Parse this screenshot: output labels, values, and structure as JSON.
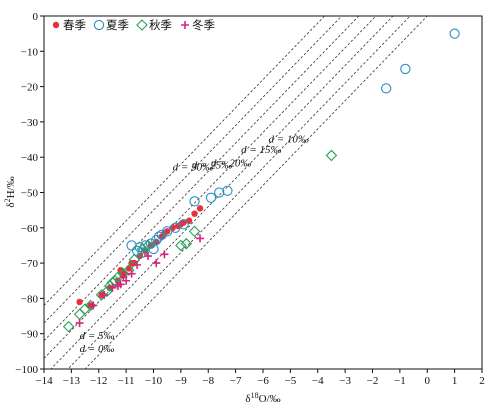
{
  "chart_data": {
    "type": "scatter",
    "xlabel": "δ18O/‰",
    "ylabel": "δ2H/‰",
    "xlim": [
      -14,
      2
    ],
    "ylim": [
      -100,
      0
    ],
    "x_ticks": [
      -14,
      -13,
      -12,
      -11,
      -10,
      -9,
      -8,
      -7,
      -6,
      -5,
      -4,
      -3,
      -2,
      -1,
      0,
      1,
      2
    ],
    "y_ticks": [
      0,
      -10,
      -20,
      -30,
      -40,
      -50,
      -60,
      -70,
      -80,
      -90,
      -100
    ],
    "grid": false,
    "legend_position": "top-left",
    "reference_lines": [
      {
        "d": 0,
        "label": "d = 0‰"
      },
      {
        "d": 5,
        "label": "d = 5‰"
      },
      {
        "d": 10,
        "label": "d = 10‰"
      },
      {
        "d": 15,
        "label": "d = 15‰"
      },
      {
        "d": 20,
        "label": "d = 20‰"
      },
      {
        "d": 25,
        "label": "d = 25‰"
      },
      {
        "d": 30,
        "label": "d = 30‰"
      }
    ],
    "series": [
      {
        "name": "春季",
        "marker": "filled-circle",
        "color": "#e8303a",
        "points": [
          [
            -12.7,
            -81
          ],
          [
            -12.3,
            -82
          ],
          [
            -11.9,
            -79
          ],
          [
            -11.6,
            -77
          ],
          [
            -11.3,
            -75
          ],
          [
            -11.1,
            -73
          ],
          [
            -10.9,
            -71.5
          ],
          [
            -10.7,
            -70
          ],
          [
            -10.5,
            -68
          ],
          [
            -10.3,
            -66.5
          ],
          [
            -10.1,
            -65
          ],
          [
            -9.9,
            -64
          ],
          [
            -9.7,
            -62.5
          ],
          [
            -9.5,
            -61
          ],
          [
            -9.3,
            -60
          ],
          [
            -9.1,
            -59.5
          ],
          [
            -8.9,
            -58.5
          ],
          [
            -8.7,
            -58
          ],
          [
            -8.5,
            -56
          ],
          [
            -8.3,
            -54.5
          ],
          [
            -10.8,
            -70
          ],
          [
            -11.2,
            -72
          ],
          [
            -9.6,
            -61.5
          ],
          [
            -9.0,
            -59
          ]
        ]
      },
      {
        "name": "夏季",
        "marker": "open-circle",
        "color": "#2a8fc0",
        "points": [
          [
            1.0,
            -5
          ],
          [
            -0.8,
            -15
          ],
          [
            -1.5,
            -20.5
          ],
          [
            -7.3,
            -49.5
          ],
          [
            -7.6,
            -50
          ],
          [
            -7.9,
            -51.5
          ],
          [
            -8.5,
            -52.5
          ],
          [
            -8.9,
            -59
          ],
          [
            -9.2,
            -60
          ],
          [
            -9.5,
            -61
          ],
          [
            -9.7,
            -62
          ],
          [
            -9.9,
            -63.5
          ],
          [
            -10.1,
            -64.5
          ],
          [
            -10.3,
            -65
          ],
          [
            -10.5,
            -65.5
          ],
          [
            -10.8,
            -65
          ],
          [
            -10.6,
            -66.5
          ],
          [
            -10.0,
            -66
          ],
          [
            -10.4,
            -67
          ],
          [
            -9.8,
            -62.5
          ]
        ]
      },
      {
        "name": "秋季",
        "marker": "open-diamond",
        "color": "#27a35a",
        "points": [
          [
            -3.5,
            -39.5
          ],
          [
            -13.1,
            -88
          ],
          [
            -12.7,
            -84.5
          ],
          [
            -12.5,
            -83
          ],
          [
            -12.3,
            -82
          ],
          [
            -11.9,
            -79
          ],
          [
            -11.7,
            -78
          ],
          [
            -11.5,
            -75.5
          ],
          [
            -11.3,
            -74
          ],
          [
            -11.1,
            -73
          ],
          [
            -10.9,
            -72
          ],
          [
            -10.7,
            -69
          ],
          [
            -10.4,
            -66
          ],
          [
            -10.2,
            -65
          ],
          [
            -9.0,
            -65
          ],
          [
            -8.8,
            -64.5
          ],
          [
            -8.5,
            -61
          ],
          [
            -11.6,
            -76.5
          ],
          [
            -11.4,
            -75
          ]
        ]
      },
      {
        "name": "冬季",
        "marker": "plus",
        "color": "#d6247e",
        "points": [
          [
            -12.7,
            -87
          ],
          [
            -12.2,
            -82
          ],
          [
            -11.8,
            -79
          ],
          [
            -11.5,
            -77
          ],
          [
            -11.2,
            -76
          ],
          [
            -11.0,
            -75
          ],
          [
            -10.8,
            -73
          ],
          [
            -10.6,
            -70.5
          ],
          [
            -10.2,
            -68
          ],
          [
            -9.9,
            -70
          ],
          [
            -9.6,
            -67.5
          ],
          [
            -8.3,
            -63
          ],
          [
            -11.1,
            -74
          ],
          [
            -11.3,
            -76.5
          ]
        ]
      }
    ]
  }
}
